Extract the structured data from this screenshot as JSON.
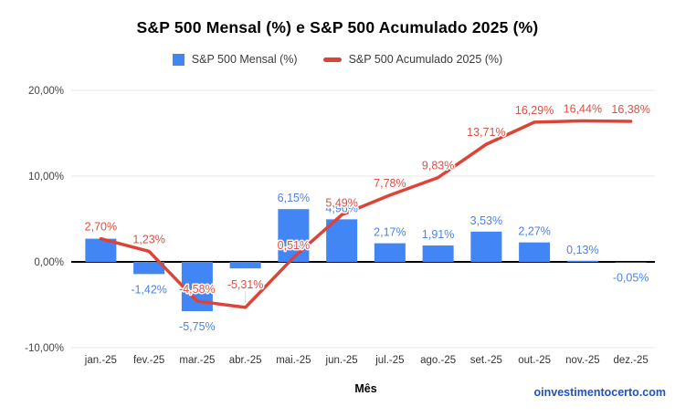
{
  "page": {
    "footer_text": "oinvestimentocerto.com"
  },
  "chart_data": {
    "type": "combo",
    "title": "S&P 500 Mensal (%) e S&P 500 Acumulado 2025 (%)",
    "xlabel": "Mês",
    "ylim": [
      -10,
      20
    ],
    "grid": true,
    "legend_position": "top",
    "categories": [
      "jan.-25",
      "fev.-25",
      "mar.-25",
      "abr.-25",
      "mai.-25",
      "jun.-25",
      "jul.-25",
      "ago.-25",
      "set.-25",
      "out.-25",
      "nov.-25",
      "dez.-25"
    ],
    "yticks": {
      "values": [
        20,
        10,
        0,
        -10
      ],
      "labels": [
        "20,00%",
        "10,00%",
        "0,00%",
        "-10,00%"
      ]
    },
    "series": [
      {
        "name": "S&P 500 Mensal (%)",
        "type": "bar",
        "color": "#4285F4",
        "label_color": "#4a82ec",
        "values": [
          2.7,
          -1.42,
          -5.75,
          -0.76,
          6.15,
          4.96,
          2.17,
          1.91,
          3.53,
          2.27,
          0.13,
          -0.05
        ],
        "labels": [
          "2,70%",
          "-1,42%",
          "-5,75%",
          "",
          "6,15%",
          "4,96%",
          "2,17%",
          "1,91%",
          "3,53%",
          "2,27%",
          "0,13%",
          "-0,05%"
        ]
      },
      {
        "name": "S&P 500 Acumulado 2025 (%)",
        "type": "line",
        "color": "#DB4437",
        "label_color": "#DC4F43",
        "values": [
          2.7,
          1.23,
          -4.58,
          -5.31,
          0.51,
          5.49,
          7.78,
          9.83,
          13.71,
          16.29,
          16.44,
          16.38
        ],
        "labels": [
          "2,70%",
          "1,23%",
          "-4,58%",
          "-5,31%",
          "0,51%",
          "5,49%",
          "7,78%",
          "9,83%",
          "13,71%",
          "16,29%",
          "16,44%",
          "16,38%"
        ]
      }
    ]
  }
}
